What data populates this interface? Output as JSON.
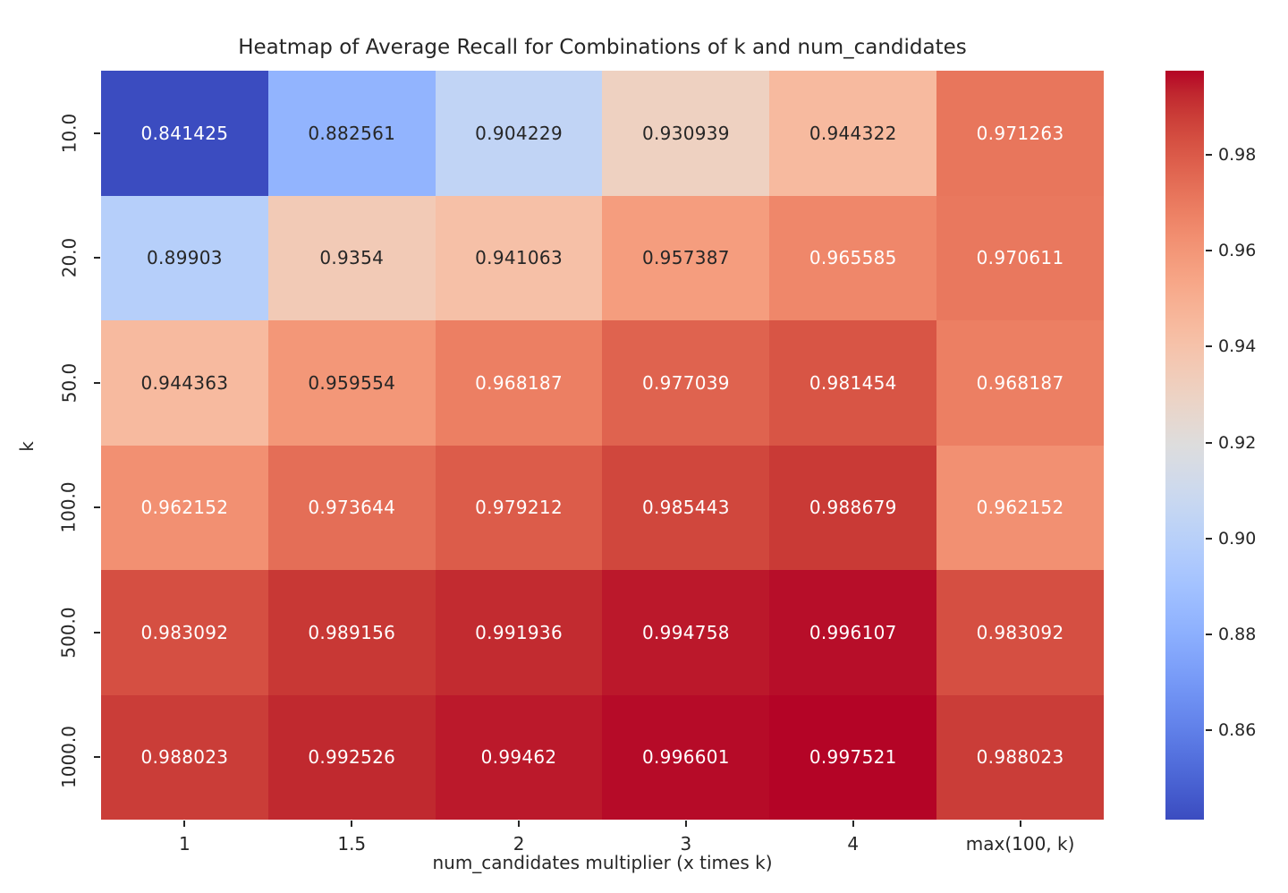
{
  "chart_data": {
    "type": "heatmap",
    "title": "Heatmap of Average Recall for Combinations of k and num_candidates",
    "xlabel": "num_candidates multiplier (x times k)",
    "ylabel": "k",
    "x_categories": [
      "1",
      "1.5",
      "2",
      "3",
      "4",
      "max(100, k)"
    ],
    "y_categories": [
      "10.0",
      "20.0",
      "50.0",
      "100.0",
      "500.0",
      "1000.0"
    ],
    "values": [
      [
        0.841425,
        0.882561,
        0.904229,
        0.930939,
        0.944322,
        0.971263
      ],
      [
        0.89903,
        0.9354,
        0.941063,
        0.957387,
        0.965585,
        0.970611
      ],
      [
        0.944363,
        0.959554,
        0.968187,
        0.977039,
        0.981454,
        0.968187
      ],
      [
        0.962152,
        0.973644,
        0.979212,
        0.985443,
        0.988679,
        0.962152
      ],
      [
        0.983092,
        0.989156,
        0.991936,
        0.994758,
        0.996107,
        0.983092
      ],
      [
        0.988023,
        0.992526,
        0.99462,
        0.996601,
        0.997521,
        0.988023
      ]
    ],
    "cell_labels": [
      [
        "0.841425",
        "0.882561",
        "0.904229",
        "0.930939",
        "0.944322",
        "0.971263"
      ],
      [
        "0.89903",
        "0.9354",
        "0.941063",
        "0.957387",
        "0.965585",
        "0.970611"
      ],
      [
        "0.944363",
        "0.959554",
        "0.968187",
        "0.977039",
        "0.981454",
        "0.968187"
      ],
      [
        "0.962152",
        "0.973644",
        "0.979212",
        "0.985443",
        "0.988679",
        "0.962152"
      ],
      [
        "0.983092",
        "0.989156",
        "0.991936",
        "0.994758",
        "0.996107",
        "0.983092"
      ],
      [
        "0.988023",
        "0.992526",
        "0.99462",
        "0.996601",
        "0.997521",
        "0.988023"
      ]
    ],
    "vmin": 0.841425,
    "vmax": 0.997521,
    "colormap": "coolwarm",
    "colorbar_tick_labels": [
      "0.98",
      "0.96",
      "0.94",
      "0.92",
      "0.90",
      "0.88",
      "0.86"
    ],
    "legend_position": "right",
    "grid": false,
    "colors": {
      "cmap_low": "#3b4cc0",
      "cmap_mid": "#dddddd",
      "cmap_high": "#b40426",
      "dark_text": "#262626",
      "light_text": "#ffffff",
      "background": "#ffffff"
    }
  }
}
